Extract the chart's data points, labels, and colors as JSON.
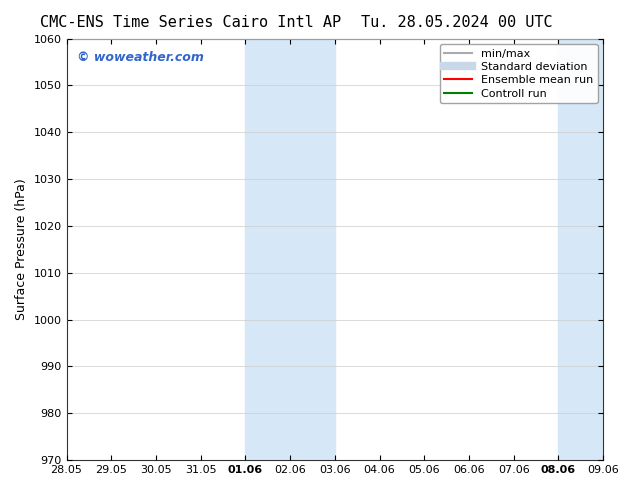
{
  "title_left": "CMC-ENS Time Series Cairo Intl AP",
  "title_right": "Tu. 28.05.2024 00 UTC",
  "ylabel": "Surface Pressure (hPa)",
  "ylim": [
    970,
    1060
  ],
  "yticks": [
    970,
    980,
    990,
    1000,
    1010,
    1020,
    1030,
    1040,
    1050,
    1060
  ],
  "xtick_labels": [
    "28.05",
    "29.05",
    "30.05",
    "31.05",
    "01.06",
    "02.06",
    "03.06",
    "04.06",
    "05.06",
    "06.06",
    "07.06",
    "08.06",
    "09.06"
  ],
  "xtick_positions": [
    0,
    1,
    2,
    3,
    4,
    5,
    6,
    7,
    8,
    9,
    10,
    11,
    12
  ],
  "shaded_bands": [
    {
      "xmin": 4,
      "xmax": 6,
      "color": "#d6e8f7"
    },
    {
      "xmin": 11,
      "xmax": 12,
      "color": "#d6e8f7"
    }
  ],
  "watermark_text": "© woweather.com",
  "watermark_color": "#3366cc",
  "legend_entries": [
    {
      "label": "min/max",
      "color": "#aaaaaa",
      "lw": 1.5,
      "style": "-"
    },
    {
      "label": "Standard deviation",
      "color": "#c8d8e8",
      "lw": 6,
      "style": "-"
    },
    {
      "label": "Ensemble mean run",
      "color": "red",
      "lw": 1.5,
      "style": "-"
    },
    {
      "label": "Controll run",
      "color": "green",
      "lw": 1.5,
      "style": "-"
    }
  ],
  "bg_color": "#ffffff",
  "plot_bg_color": "#ffffff",
  "title_fontsize": 11,
  "axis_label_fontsize": 9,
  "tick_fontsize": 8,
  "legend_fontsize": 8
}
